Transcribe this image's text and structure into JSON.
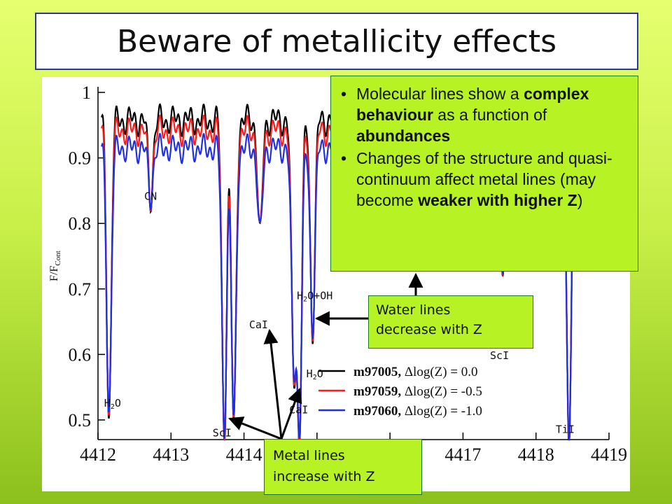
{
  "title": "Beware of metallicity effects",
  "info_box": {
    "bullet1": {
      "t1": "Molecular lines show a ",
      "b1": "complex behaviour",
      "t2": " as a function of ",
      "b2": "abundances"
    },
    "bullet2": {
      "t1": "Changes of the structure and quasi-continuum affect metal lines (may become ",
      "b1": "weaker with higher Z",
      "t2": ")"
    }
  },
  "water_box": {
    "line1": "Water lines",
    "line2": "decrease with Z"
  },
  "metal_box": {
    "line1": "Metal lines",
    "line2": "increase with Z"
  },
  "colors": {
    "black": "#000000",
    "red": "#ff1a1a",
    "blue": "#1f2fe6",
    "callout": "#b6f224"
  },
  "chart_data": {
    "type": "line",
    "title": "",
    "xlabel": "",
    "ylabel": "F/F",
    "ylabel_sub": "Cont",
    "xlim": [
      4412,
      4419
    ],
    "ylim": [
      0.47,
      1.0
    ],
    "xticks": [
      4412,
      4413,
      4414,
      4415,
      4416,
      4417,
      4418,
      4419
    ],
    "yticks": [
      0.5,
      0.6,
      0.7,
      0.8,
      0.9,
      1
    ],
    "ytick_labels": [
      "0.5",
      "0.6",
      "0.7",
      "0.8",
      "0.9",
      "1"
    ],
    "series": [
      {
        "name": "m97005, Δlog(Z) = 0.0",
        "color": "#000000",
        "continuum": 0.97,
        "scale": 1.0
      },
      {
        "name": "m97059, Δlog(Z) = -0.5",
        "color": "#ff1a1a",
        "continuum": 0.953,
        "scale": 0.93
      },
      {
        "name": "m97060, Δlog(Z) = -1.0",
        "color": "#1f2fe6",
        "continuum": 0.925,
        "scale": 0.85
      }
    ],
    "lines": [
      {
        "x": 4412.15,
        "min": 0.52
      },
      {
        "x": 4412.72,
        "min": 0.85
      },
      {
        "x": 4413.73,
        "min": 0.49
      },
      {
        "x": 4413.86,
        "min": 0.5
      },
      {
        "x": 4414.22,
        "min": 0.79
      },
      {
        "x": 4414.68,
        "min": 0.6
      },
      {
        "x": 4414.76,
        "min": 0.5
      },
      {
        "x": 4414.94,
        "min": 0.65
      },
      {
        "x": 4417.55,
        "min": 0.73
      },
      {
        "x": 4418.45,
        "min": 0.48
      }
    ],
    "annotations": [
      {
        "label": "CN",
        "x": 4412.72,
        "y": 0.836
      },
      {
        "label": "H2O",
        "x": 4412.2,
        "y": 0.52
      },
      {
        "label": "ScI",
        "x": 4413.7,
        "y": 0.475
      },
      {
        "label": "CaI",
        "x": 4414.2,
        "y": 0.64
      },
      {
        "label": "CaI",
        "x": 4414.75,
        "y": 0.51
      },
      {
        "label": "H2O",
        "x": 4414.97,
        "y": 0.565
      },
      {
        "label": "H2O+OH",
        "x": 4414.97,
        "y": 0.684
      },
      {
        "label": "ScI",
        "x": 4417.5,
        "y": 0.593
      },
      {
        "label": "TiI",
        "x": 4418.4,
        "y": 0.48
      }
    ]
  }
}
